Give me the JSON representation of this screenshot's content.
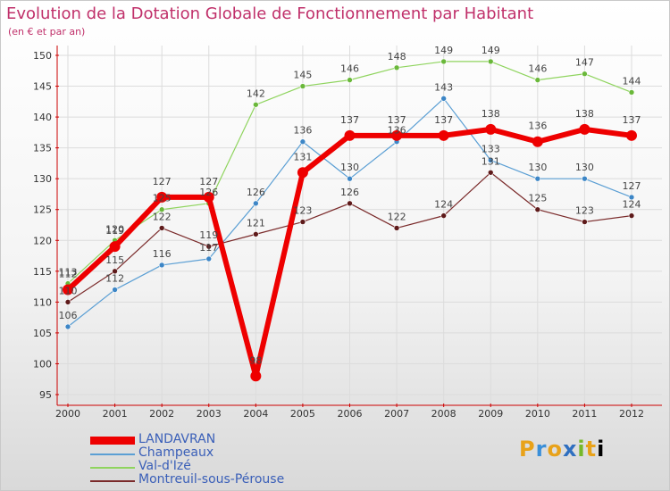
{
  "title": "Evolution de la Dotation Globale de Fonctionnement par Habitant",
  "subtitle": "(en € et par an)",
  "logo_text": "Proxiti",
  "colors": {
    "title": "#c0306a",
    "axis": "#cc0000",
    "grid": "#dcdcdc",
    "tick_label": "#333333",
    "data_label": "#444444"
  },
  "chart_data": {
    "type": "line",
    "title": "Evolution de la Dotation Globale de Fonctionnement par Habitant",
    "ylabel": "en € et par an",
    "xlabel": "",
    "x": [
      "2000",
      "2001",
      "2002",
      "2003",
      "2004",
      "2005",
      "2006",
      "2007",
      "2008",
      "2009",
      "2010",
      "2011",
      "2012"
    ],
    "ylim": [
      95,
      150
    ],
    "yticks": [
      95,
      100,
      105,
      110,
      115,
      120,
      125,
      130,
      135,
      140,
      145,
      150
    ],
    "grid": true,
    "legend_position": "bottom-left",
    "series": [
      {
        "name": "Val-d'Izé",
        "color": "#8fd45e",
        "point_color": "#6ab83a",
        "width": 1.2,
        "marker": 3,
        "values": [
          113,
          120,
          125,
          126,
          142,
          145,
          146,
          148,
          149,
          149,
          146,
          147,
          144
        ],
        "labels": [
          "113",
          "120",
          "125",
          "126",
          "142",
          "145",
          "146",
          "148",
          "149",
          "149",
          "146",
          "147",
          "144"
        ]
      },
      {
        "name": "Champeaux",
        "color": "#5b9fd4",
        "point_color": "#3d86c6",
        "width": 1.2,
        "marker": 3,
        "values": [
          106,
          112,
          116,
          117,
          126,
          136,
          130,
          136,
          143,
          133,
          130,
          130,
          127
        ],
        "labels": [
          "106",
          "112",
          "116",
          "117",
          "126",
          "136",
          "130",
          "136",
          "143",
          "133",
          "130",
          "130",
          "127"
        ]
      },
      {
        "name": "Montreuil-sous-Pérouse",
        "color": "#7a2a2a",
        "point_color": "#5e1a1a",
        "width": 1.2,
        "marker": 3,
        "values": [
          110,
          115,
          122,
          119,
          121,
          123,
          126,
          122,
          124,
          131,
          125,
          123,
          124
        ],
        "labels": [
          "110",
          "115",
          "122",
          "119",
          "121",
          "123",
          "126",
          "122",
          "124",
          "131",
          "125",
          "123",
          "124"
        ]
      },
      {
        "name": "LANDAVRAN",
        "color": "#ee0000",
        "point_color": "#ee0000",
        "width": 6,
        "marker": 6,
        "values": [
          112,
          119,
          127,
          127,
          98,
          131,
          137,
          137,
          137,
          138,
          136,
          138,
          137
        ],
        "labels": [
          "112",
          "119",
          "127",
          "127",
          "98",
          "131",
          "137",
          "137",
          "137",
          "138",
          "136",
          "138",
          "137"
        ]
      }
    ],
    "legend": [
      "LANDAVRAN",
      "Champeaux",
      "Val-d'Izé",
      "Montreuil-sous-Pérouse"
    ]
  }
}
